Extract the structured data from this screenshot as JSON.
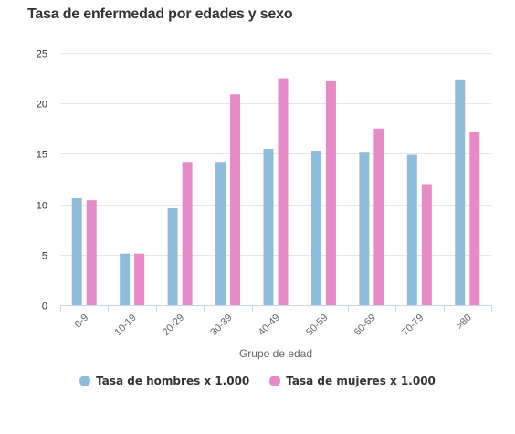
{
  "chart_data": {
    "type": "bar",
    "title": "Tasa de enfermedad por edades y sexo",
    "xlabel": "Grupo de edad",
    "ylabel": "",
    "categories": [
      "0-9",
      "10-19",
      "20-29",
      "30-39",
      "40-49",
      "50-59",
      "60-69",
      "70-79",
      ">80"
    ],
    "series": [
      {
        "name": "Tasa de hombres x 1.000",
        "color": "#8fbcd8",
        "values": [
          10.6,
          5.1,
          9.6,
          14.2,
          15.5,
          15.3,
          15.2,
          14.9,
          22.3
        ]
      },
      {
        "name": "Tasa de mujeres x 1.000",
        "color": "#e68ac8",
        "values": [
          10.4,
          5.1,
          14.2,
          20.9,
          22.5,
          22.2,
          17.5,
          12.0,
          17.2
        ]
      }
    ],
    "ylim": [
      0,
      25
    ],
    "yticks": [
      0,
      5,
      10,
      15,
      20,
      25
    ],
    "grid": true,
    "legend_position": "bottom"
  }
}
